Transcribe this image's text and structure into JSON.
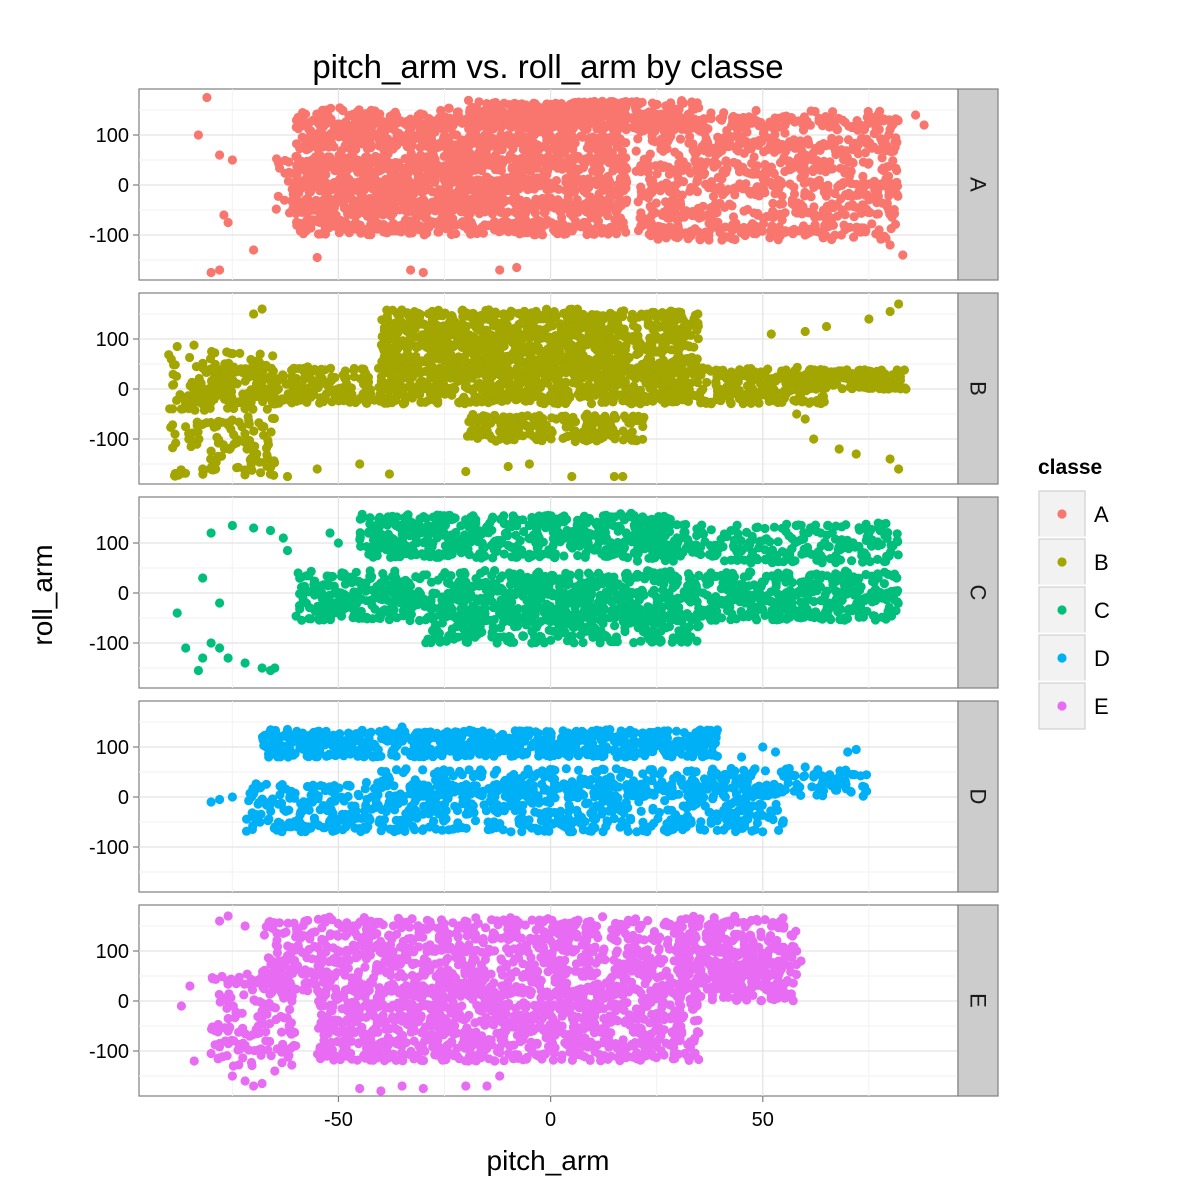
{
  "chart_data": {
    "type": "scatter",
    "title": "pitch_arm vs. roll_arm by classe",
    "xlabel": "pitch_arm",
    "ylabel": "roll_arm",
    "xlim": [
      -97,
      96
    ],
    "ylim": [
      -190,
      192
    ],
    "x_ticks": [
      -50,
      0,
      50
    ],
    "y_ticks": [
      -100,
      0,
      100
    ],
    "x_tick_labels": [
      "-50",
      "0",
      "50"
    ],
    "y_tick_labels": [
      "-100",
      "0",
      "100"
    ],
    "grid": true,
    "facet_by": "classe",
    "legend": {
      "title": "classe",
      "position": "right"
    },
    "series": [
      {
        "name": "A",
        "color": "#F8766D",
        "clusters": [
          [
            -60,
            18,
            -100,
            155,
            1900
          ],
          [
            20,
            82,
            -110,
            150,
            900
          ],
          [
            -20,
            35,
            110,
            170,
            350
          ],
          [
            -65,
            -5,
            -60,
            60,
            250
          ]
        ],
        "points": [
          [
            -81,
            175
          ],
          [
            -83,
            100
          ],
          [
            -78,
            60
          ],
          [
            -75,
            50
          ],
          [
            -76,
            -75
          ],
          [
            -77,
            -60
          ],
          [
            -80,
            -175
          ],
          [
            -78,
            -170
          ],
          [
            -70,
            -130
          ],
          [
            -55,
            -145
          ],
          [
            -33,
            -170
          ],
          [
            -30,
            -175
          ],
          [
            -8,
            -165
          ],
          [
            -12,
            -170
          ],
          [
            55,
            55
          ],
          [
            80,
            -120
          ],
          [
            83,
            -140
          ],
          [
            86,
            140
          ],
          [
            88,
            120
          ]
        ]
      },
      {
        "name": "B",
        "color": "#A3A500",
        "clusters": [
          [
            -40,
            35,
            30,
            160,
            1100
          ],
          [
            -85,
            65,
            -30,
            45,
            1000
          ],
          [
            -90,
            -65,
            -175,
            90,
            200
          ],
          [
            -20,
            22,
            -105,
            -50,
            200
          ],
          [
            60,
            84,
            0,
            40,
            150
          ]
        ],
        "points": [
          [
            -88,
            85
          ],
          [
            -87,
            -40
          ],
          [
            -82,
            -160
          ],
          [
            -70,
            150
          ],
          [
            -68,
            160
          ],
          [
            -62,
            -175
          ],
          [
            -55,
            -160
          ],
          [
            -45,
            -150
          ],
          [
            -38,
            -170
          ],
          [
            -20,
            -165
          ],
          [
            -5,
            -150
          ],
          [
            5,
            -175
          ],
          [
            15,
            -175
          ],
          [
            17,
            -175
          ],
          [
            -10,
            -155
          ],
          [
            52,
            110
          ],
          [
            60,
            115
          ],
          [
            65,
            125
          ],
          [
            75,
            140
          ],
          [
            80,
            155
          ],
          [
            82,
            170
          ],
          [
            62,
            -100
          ],
          [
            68,
            -120
          ],
          [
            72,
            -130
          ],
          [
            80,
            -140
          ],
          [
            82,
            -160
          ],
          [
            58,
            -50
          ],
          [
            60,
            -60
          ]
        ]
      },
      {
        "name": "C",
        "color": "#00BF7D",
        "clusters": [
          [
            -45,
            30,
            70,
            160,
            550
          ],
          [
            -60,
            82,
            -55,
            45,
            1100
          ],
          [
            -30,
            35,
            -100,
            -40,
            250
          ],
          [
            20,
            82,
            60,
            140,
            250
          ]
        ],
        "points": [
          [
            -88,
            -40
          ],
          [
            -86,
            -110
          ],
          [
            -83,
            -155
          ],
          [
            -82,
            -130
          ],
          [
            -80,
            -100
          ],
          [
            -78,
            -110
          ],
          [
            -76,
            -130
          ],
          [
            -72,
            -140
          ],
          [
            -68,
            -150
          ],
          [
            -66,
            -155
          ],
          [
            -65,
            -150
          ],
          [
            -82,
            30
          ],
          [
            -80,
            120
          ],
          [
            -75,
            135
          ],
          [
            -70,
            130
          ],
          [
            -66,
            125
          ],
          [
            -63,
            110
          ],
          [
            -62,
            85
          ],
          [
            -78,
            -20
          ],
          [
            -52,
            120
          ],
          [
            -50,
            100
          ],
          [
            75,
            120
          ],
          [
            78,
            130
          ]
        ]
      },
      {
        "name": "D",
        "color": "#00B0F6",
        "clusters": [
          [
            -68,
            40,
            80,
            135,
            700
          ],
          [
            -72,
            55,
            -70,
            30,
            700
          ],
          [
            -40,
            75,
            0,
            60,
            300
          ]
        ],
        "points": [
          [
            -80,
            -10
          ],
          [
            -78,
            -5
          ],
          [
            -75,
            0
          ],
          [
            -70,
            -40
          ],
          [
            -65,
            -60
          ],
          [
            60,
            60
          ],
          [
            62,
            40
          ],
          [
            65,
            30
          ],
          [
            68,
            40
          ],
          [
            70,
            90
          ],
          [
            72,
            95
          ],
          [
            74,
            20
          ],
          [
            -62,
            135
          ],
          [
            -35,
            140
          ],
          [
            45,
            80
          ],
          [
            50,
            100
          ],
          [
            53,
            90
          ]
        ]
      },
      {
        "name": "E",
        "color": "#E76BF3",
        "clusters": [
          [
            -68,
            55,
            20,
            170,
            1100
          ],
          [
            -55,
            35,
            -120,
            30,
            1000
          ],
          [
            -80,
            -60,
            -130,
            60,
            150
          ],
          [
            30,
            58,
            0,
            140,
            200
          ]
        ],
        "points": [
          [
            -87,
            -10
          ],
          [
            -85,
            30
          ],
          [
            -84,
            -120
          ],
          [
            -80,
            -105
          ],
          [
            -78,
            -85
          ],
          [
            -75,
            -150
          ],
          [
            -72,
            -160
          ],
          [
            -70,
            -170
          ],
          [
            -68,
            -165
          ],
          [
            -65,
            -140
          ],
          [
            -78,
            160
          ],
          [
            -76,
            170
          ],
          [
            -72,
            150
          ],
          [
            -45,
            -175
          ],
          [
            -40,
            -180
          ],
          [
            -35,
            -170
          ],
          [
            -30,
            -175
          ],
          [
            -20,
            -170
          ],
          [
            -15,
            -170
          ],
          [
            -12,
            -150
          ],
          [
            55,
            150
          ],
          [
            57,
            130
          ],
          [
            59,
            80
          ],
          [
            58,
            100
          ],
          [
            52,
            115
          ]
        ]
      }
    ]
  }
}
